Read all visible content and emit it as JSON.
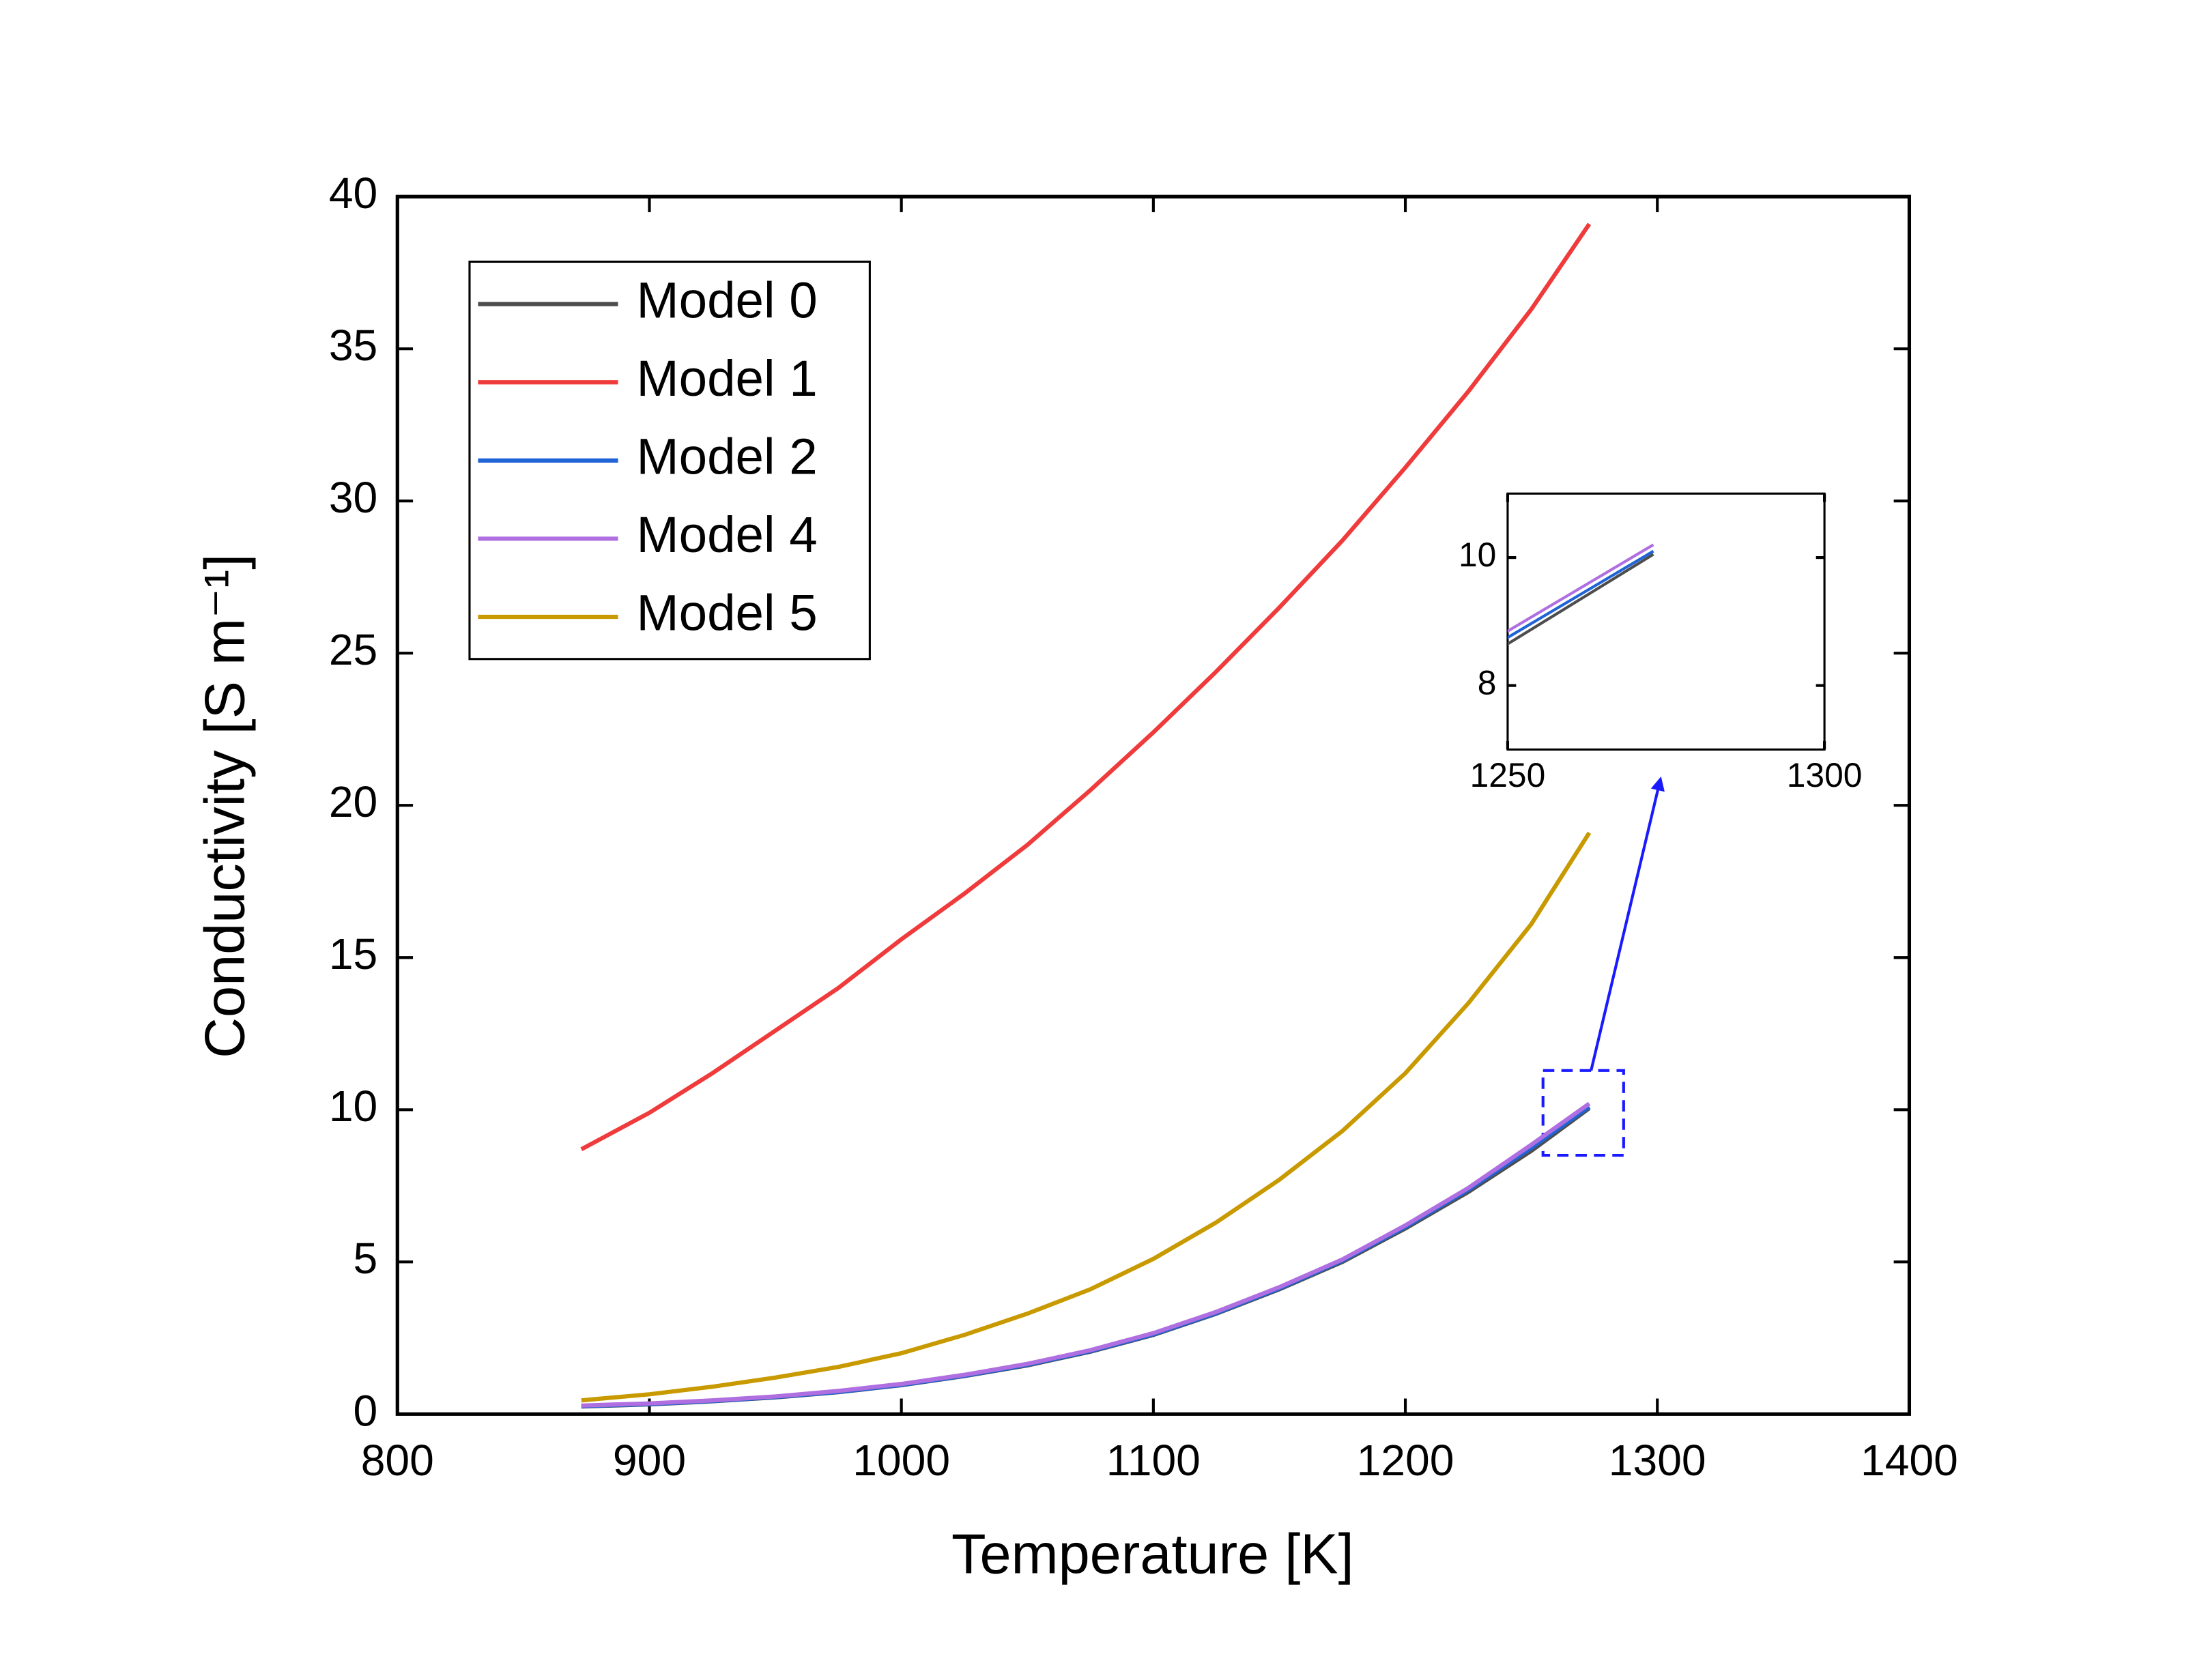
{
  "chart_data": {
    "type": "line",
    "x_label": "Temperature [K]",
    "y_label": "Conductivity [S m⁻¹]",
    "x": [
      873,
      900,
      925,
      950,
      975,
      1000,
      1025,
      1050,
      1075,
      1100,
      1125,
      1150,
      1175,
      1200,
      1225,
      1250,
      1273
    ],
    "series": [
      {
        "name": "Model 0",
        "color": "#4d4d4d",
        "values": [
          0.25,
          0.32,
          0.42,
          0.55,
          0.72,
          0.95,
          1.25,
          1.6,
          2.05,
          2.6,
          3.3,
          4.1,
          5.0,
          6.1,
          7.3,
          8.65,
          10.05
        ]
      },
      {
        "name": "Model 1",
        "color": "#ef3b3b",
        "values": [
          8.7,
          9.9,
          11.2,
          12.6,
          14.0,
          15.6,
          17.1,
          18.7,
          20.5,
          22.4,
          24.4,
          26.5,
          28.7,
          31.1,
          33.6,
          36.3,
          39.1
        ]
      },
      {
        "name": "Model 2",
        "color": "#1f63d6",
        "values": [
          0.26,
          0.33,
          0.43,
          0.56,
          0.73,
          0.96,
          1.26,
          1.62,
          2.07,
          2.62,
          3.32,
          4.13,
          5.04,
          6.15,
          7.37,
          8.75,
          10.1
        ]
      },
      {
        "name": "Model 4",
        "color": "#b06fe0",
        "values": [
          0.28,
          0.35,
          0.45,
          0.58,
          0.76,
          0.99,
          1.29,
          1.65,
          2.1,
          2.66,
          3.36,
          4.17,
          5.08,
          6.2,
          7.43,
          8.85,
          10.2
        ]
      },
      {
        "name": "Model 5",
        "color": "#c89a00",
        "values": [
          0.45,
          0.65,
          0.9,
          1.2,
          1.55,
          2.0,
          2.6,
          3.3,
          4.1,
          5.1,
          6.3,
          7.7,
          9.3,
          11.2,
          13.5,
          16.1,
          19.1
        ]
      }
    ],
    "xlim": [
      800,
      1400
    ],
    "xticks": [
      800,
      900,
      1000,
      1100,
      1200,
      1300,
      1400
    ],
    "ylim": [
      0,
      40
    ],
    "yticks": [
      0,
      5,
      10,
      15,
      20,
      25,
      30,
      35,
      40
    ],
    "legend": "upper-left",
    "inset": {
      "xlim": [
        1250,
        1300
      ],
      "xticks": [
        1250,
        1300
      ],
      "ylim": [
        7,
        11
      ],
      "yticks": [
        8,
        10
      ]
    }
  }
}
